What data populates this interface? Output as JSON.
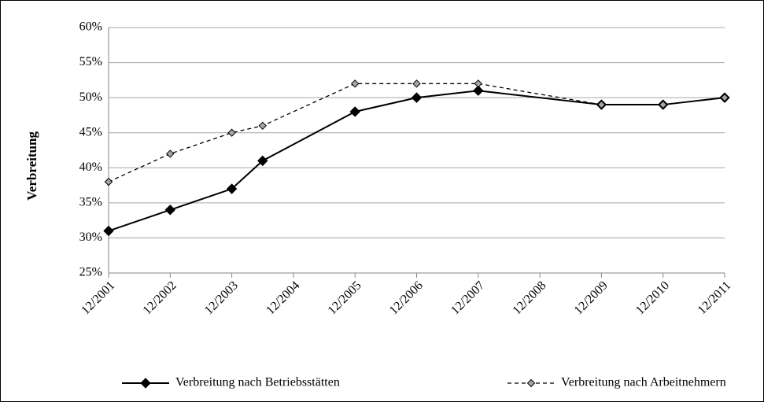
{
  "chart_data": {
    "type": "line",
    "ylabel": "Verbreitung",
    "x": [
      2001,
      2002,
      2003,
      2003.5,
      2005,
      2006,
      2007,
      2009,
      2010,
      2011
    ],
    "series": [
      {
        "name": "Verbreitung nach Betriebsstätten",
        "color": "#000000",
        "marker_color": "#000000",
        "line_style": "solid",
        "values": [
          31,
          34,
          37,
          41,
          48,
          50,
          51,
          49,
          49,
          50
        ]
      },
      {
        "name": "Verbreitung nach Arbeitnehmern",
        "color": "#000000",
        "marker_color": "#a6a6a6",
        "line_style": "dashed",
        "values": [
          38,
          42,
          45,
          46,
          52,
          52,
          52,
          49,
          49,
          50
        ]
      }
    ],
    "xlim": [
      2001,
      2011
    ],
    "xticks": [
      {
        "value": 2001,
        "label": "12/2001"
      },
      {
        "value": 2002,
        "label": "12/2002"
      },
      {
        "value": 2003,
        "label": "12/2003"
      },
      {
        "value": 2004,
        "label": "12/2004"
      },
      {
        "value": 2005,
        "label": "12/2005"
      },
      {
        "value": 2006,
        "label": "12/2006"
      },
      {
        "value": 2007,
        "label": "12/2007"
      },
      {
        "value": 2008,
        "label": "12/2008"
      },
      {
        "value": 2009,
        "label": "12/2009"
      },
      {
        "value": 2010,
        "label": "12/2010"
      },
      {
        "value": 2011,
        "label": "12/2011"
      }
    ],
    "ylim": [
      25,
      60
    ],
    "yticks": [
      {
        "value": 25,
        "label": "25%"
      },
      {
        "value": 30,
        "label": "30%"
      },
      {
        "value": 35,
        "label": "35%"
      },
      {
        "value": 40,
        "label": "40%"
      },
      {
        "value": 45,
        "label": "45%"
      },
      {
        "value": 50,
        "label": "50%"
      },
      {
        "value": 55,
        "label": "55%"
      },
      {
        "value": 60,
        "label": "60%"
      }
    ],
    "grid": true,
    "legend": "bottom"
  }
}
